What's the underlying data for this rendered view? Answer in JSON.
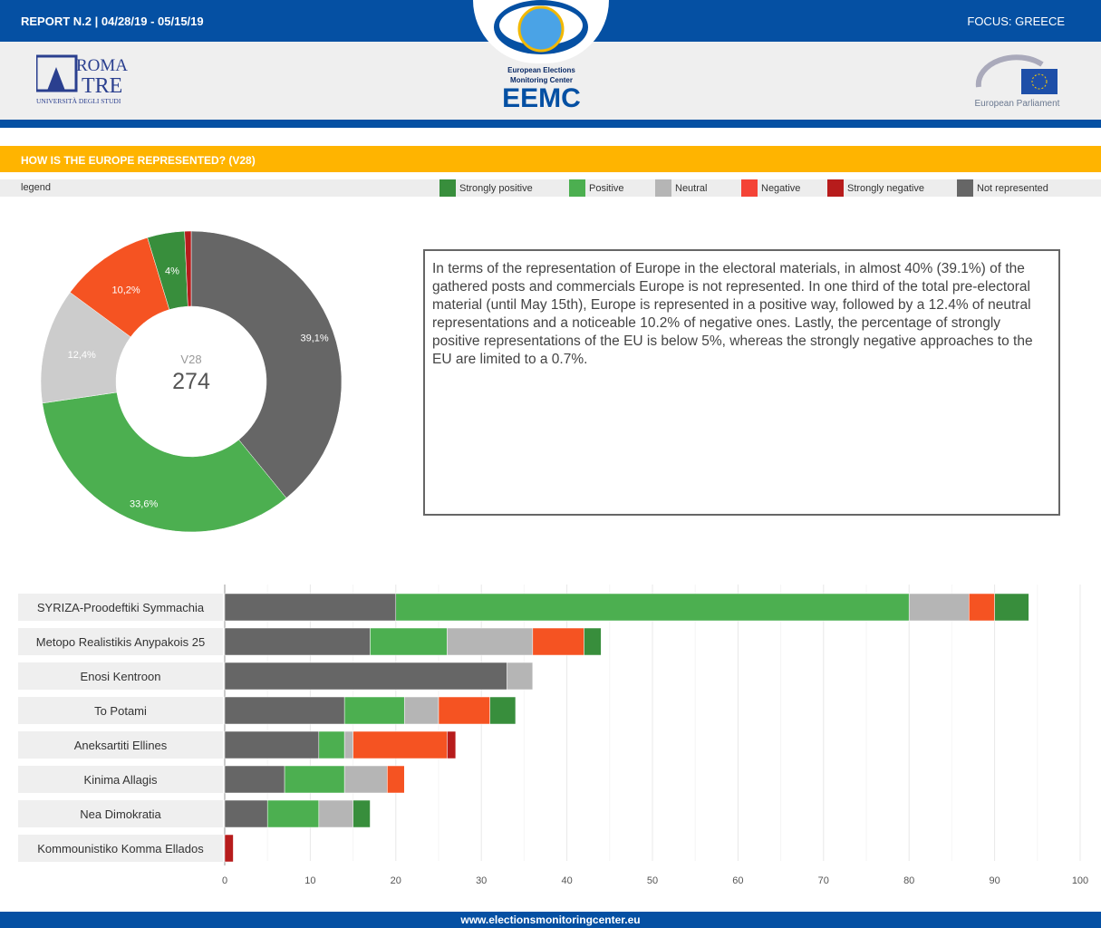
{
  "header": {
    "report": "REPORT N.2 | 04/28/19 - 05/15/19",
    "focus": "FOCUS: GREECE",
    "logos": {
      "roma_tre": "ROMA TRE UNIVERSITÀ DEGLI STUDI",
      "eemc_sub1": "European Elections",
      "eemc_sub2": "Monitoring Center",
      "eemc": "EEMC",
      "ep": "European Parliament"
    }
  },
  "section_title": "HOW IS THE EUROPE REPRESENTED? (V28)",
  "legend": {
    "label": "legend",
    "items": [
      {
        "name": "Strongly positive",
        "color": "#388e3c"
      },
      {
        "name": "Positive",
        "color": "#4caf50"
      },
      {
        "name": "Neutral",
        "color": "#b5b5b5"
      },
      {
        "name": "Negative",
        "color": "#f55322"
      },
      {
        "name": "Strongly negative",
        "color": "#b71c1c"
      },
      {
        "name": "Not represented",
        "color": "#666666"
      }
    ]
  },
  "description": "In terms of the representation of Europe in the electoral materials, in almost 40% (39.1%) of the gathered posts and commercials Europe is not represented. In one third of the total pre-electoral material (until May 15th), Europe is represented in a positive way, followed by a 12.4% of neutral representations and a noticeable 10.2% of negative ones. Lastly, the percentage of strongly positive representations of the EU is below 5%, whereas the strongly negative approaches to the EU are limited to a 0.7%.",
  "footer": "www.electionsmonitoringcenter.eu",
  "chart_data": [
    {
      "type": "pie",
      "donut": true,
      "center_label": "V28",
      "center_value": "274",
      "slices": [
        {
          "name": "Not represented",
          "value": 39.1,
          "label": "39,1%",
          "color": "#666666"
        },
        {
          "name": "Positive",
          "value": 33.6,
          "label": "33,6%",
          "color": "#4caf50"
        },
        {
          "name": "Neutral",
          "value": 12.4,
          "label": "12,4%",
          "color": "#cccccc"
        },
        {
          "name": "Negative",
          "value": 10.2,
          "label": "10,2%",
          "color": "#f55322"
        },
        {
          "name": "Strongly positive",
          "value": 4,
          "label": "4%",
          "color": "#388e3c"
        },
        {
          "name": "Strongly negative",
          "value": 0.7,
          "label": "",
          "color": "#b71c1c"
        }
      ]
    },
    {
      "type": "bar",
      "orientation": "horizontal",
      "stacked": true,
      "xlim": [
        0,
        100
      ],
      "xticks": [
        0,
        10,
        20,
        30,
        40,
        50,
        60,
        70,
        80,
        90,
        100
      ],
      "grid": true,
      "categories": [
        "SYRIZA-Proodeftiki Symmachia",
        "Metopo Realistikis Anypakois 25",
        "Enosi Kentroon",
        "To Potami",
        "Aneksartiti Ellines",
        "Kinima Allagis",
        "Nea Dimokratia",
        "Kommounistiko Komma Ellados"
      ],
      "series": [
        {
          "name": "Not represented",
          "color": "#666666",
          "values": [
            20,
            17,
            33,
            14,
            11,
            7,
            5,
            0
          ]
        },
        {
          "name": "Positive",
          "color": "#4caf50",
          "values": [
            60,
            9,
            0,
            7,
            3,
            7,
            6,
            0
          ]
        },
        {
          "name": "Neutral",
          "color": "#b5b5b5",
          "values": [
            7,
            10,
            3,
            4,
            1,
            5,
            4,
            0
          ]
        },
        {
          "name": "Negative",
          "color": "#f55322",
          "values": [
            3,
            6,
            0,
            6,
            11,
            2,
            0,
            0
          ]
        },
        {
          "name": "Strongly negative",
          "color": "#b71c1c",
          "values": [
            0,
            0,
            0,
            0,
            1,
            0,
            0,
            1
          ]
        },
        {
          "name": "Strongly positive",
          "color": "#388e3c",
          "values": [
            4,
            2,
            0,
            3,
            0,
            0,
            2,
            0
          ]
        }
      ]
    }
  ]
}
